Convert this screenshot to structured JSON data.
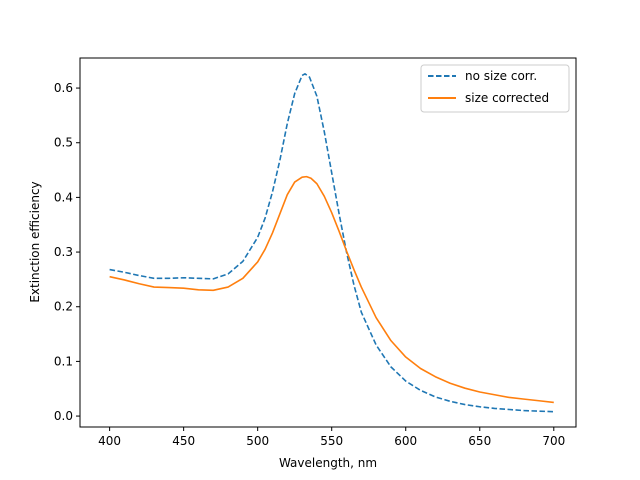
{
  "chart_data": {
    "type": "line",
    "title": "",
    "xlabel": "Wavelength, nm",
    "ylabel": "Extinction efficiency",
    "xlim": [
      380,
      715
    ],
    "ylim": [
      -0.02,
      0.655
    ],
    "xticks": [
      400,
      450,
      500,
      550,
      600,
      650,
      700
    ],
    "yticks": [
      0.0,
      0.1,
      0.2,
      0.3,
      0.4,
      0.5,
      0.6
    ],
    "grid": false,
    "legend_position": "top-right",
    "series": [
      {
        "name": "no size corr.",
        "color": "#1f77b4",
        "dash": "dashed",
        "x": [
          400,
          410,
          420,
          430,
          440,
          450,
          460,
          470,
          480,
          490,
          500,
          505,
          510,
          515,
          520,
          525,
          530,
          532,
          535,
          540,
          545,
          550,
          555,
          560,
          565,
          570,
          580,
          590,
          600,
          610,
          620,
          630,
          640,
          650,
          660,
          670,
          680,
          690,
          700
        ],
        "y": [
          0.268,
          0.263,
          0.257,
          0.252,
          0.252,
          0.253,
          0.252,
          0.251,
          0.26,
          0.283,
          0.327,
          0.362,
          0.41,
          0.468,
          0.535,
          0.59,
          0.623,
          0.626,
          0.62,
          0.585,
          0.52,
          0.445,
          0.37,
          0.3,
          0.24,
          0.19,
          0.13,
          0.09,
          0.064,
          0.047,
          0.035,
          0.027,
          0.021,
          0.017,
          0.014,
          0.012,
          0.01,
          0.009,
          0.008
        ]
      },
      {
        "name": "size corrected",
        "color": "#ff7f0e",
        "dash": "solid",
        "x": [
          400,
          410,
          420,
          430,
          440,
          450,
          460,
          470,
          480,
          490,
          500,
          505,
          510,
          515,
          520,
          525,
          530,
          533,
          536,
          540,
          545,
          550,
          555,
          560,
          565,
          570,
          580,
          590,
          600,
          610,
          620,
          630,
          640,
          650,
          660,
          670,
          680,
          690,
          700
        ],
        "y": [
          0.255,
          0.249,
          0.242,
          0.236,
          0.235,
          0.234,
          0.231,
          0.23,
          0.236,
          0.252,
          0.282,
          0.305,
          0.335,
          0.37,
          0.405,
          0.428,
          0.437,
          0.438,
          0.435,
          0.425,
          0.402,
          0.372,
          0.338,
          0.302,
          0.268,
          0.236,
          0.18,
          0.138,
          0.108,
          0.087,
          0.072,
          0.06,
          0.051,
          0.044,
          0.039,
          0.034,
          0.031,
          0.028,
          0.025
        ]
      }
    ]
  }
}
